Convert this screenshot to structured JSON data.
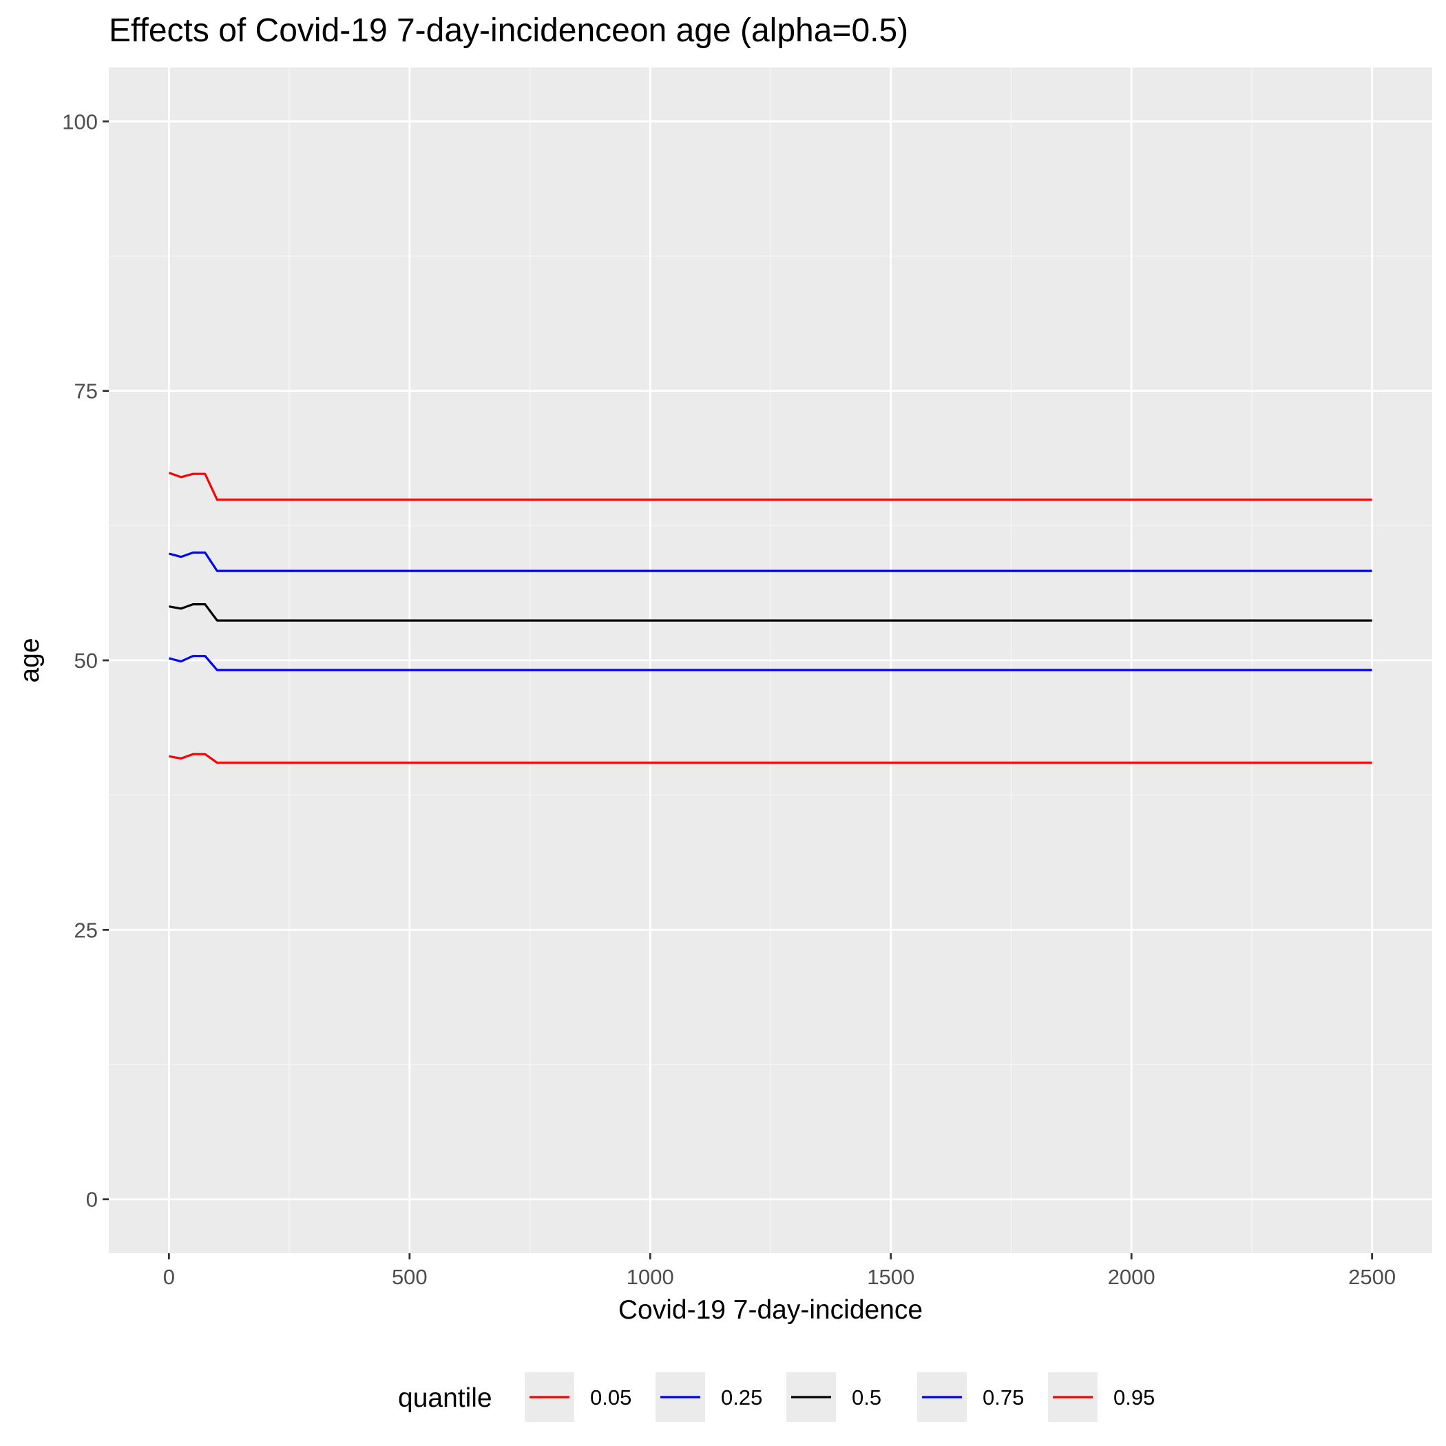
{
  "chart_data": {
    "type": "line",
    "title": "Effects of Covid-19 7-day-incidenceon age (alpha=0.5)",
    "xlabel": "Covid-19 7-day-incidence",
    "ylabel": "age",
    "xlim": [
      -125,
      2625
    ],
    "ylim": [
      -5,
      105
    ],
    "x_ticks": [
      0,
      500,
      1000,
      1500,
      2000,
      2500
    ],
    "x_tick_labels": [
      "0",
      "500",
      "1000",
      "1500",
      "2000",
      "2500"
    ],
    "y_ticks": [
      0,
      25,
      50,
      75,
      100
    ],
    "y_tick_labels": [
      "0",
      "25",
      "50",
      "75",
      "100"
    ],
    "grid": true,
    "legend": {
      "title": "quantile",
      "position": "bottom"
    },
    "x": [
      0,
      25,
      50,
      75,
      100,
      2500
    ],
    "series": [
      {
        "name": "0.05",
        "color": "#ff0000",
        "values": [
          41.1,
          40.9,
          41.3,
          41.3,
          40.5,
          40.5
        ]
      },
      {
        "name": "0.25",
        "color": "#0000ff",
        "values": [
          50.2,
          49.9,
          50.4,
          50.4,
          49.1,
          49.1
        ]
      },
      {
        "name": "0.5",
        "color": "#000000",
        "values": [
          55.0,
          54.8,
          55.2,
          55.2,
          53.7,
          53.7
        ]
      },
      {
        "name": "0.75",
        "color": "#0000ff",
        "values": [
          59.9,
          59.6,
          60.0,
          60.0,
          58.3,
          58.3
        ]
      },
      {
        "name": "0.95",
        "color": "#ff0000",
        "values": [
          67.4,
          67.0,
          67.3,
          67.3,
          64.9,
          64.9
        ]
      }
    ]
  },
  "colors": {
    "panel_background": "#ebebeb",
    "grid_major": "#ffffff",
    "grid_minor": "#f5f5f5",
    "tick_text": "#4d4d4d",
    "tick_mark": "#333333"
  }
}
